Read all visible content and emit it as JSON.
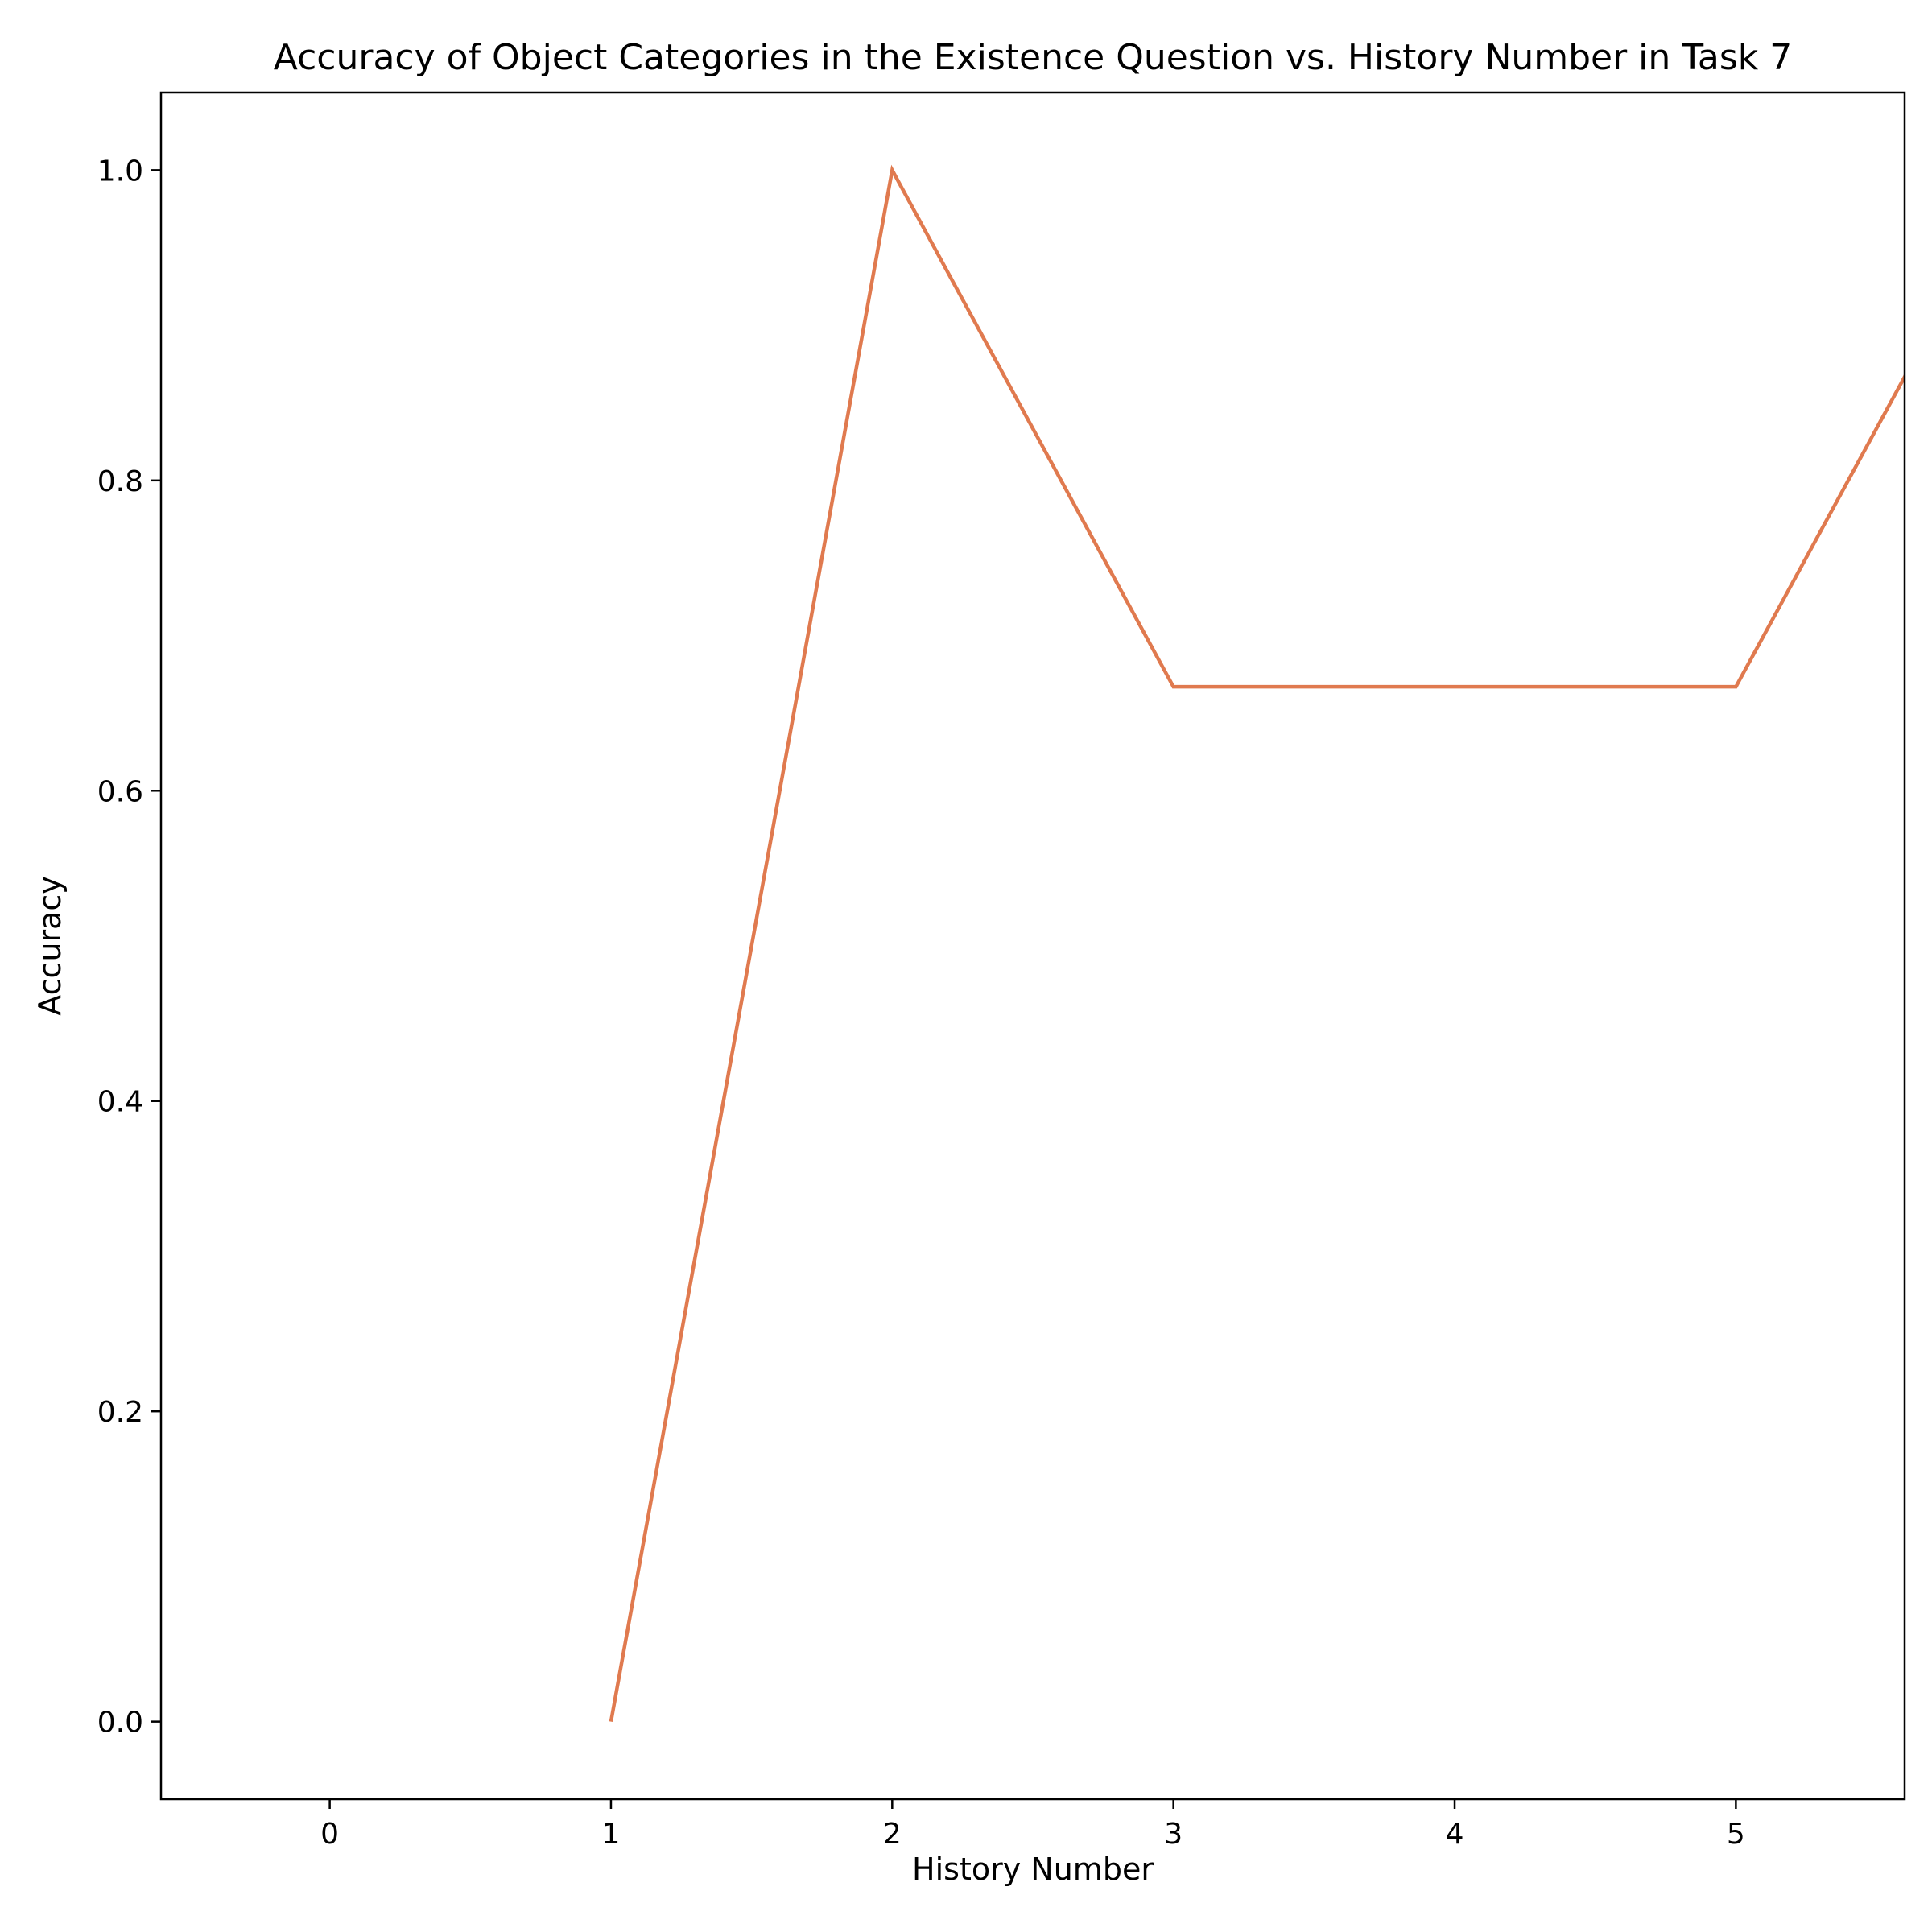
{
  "chart_data": {
    "type": "line",
    "title": "Accuracy of Object Categories in the Existence Question vs. History Number in Task 7",
    "xlabel": "History Number",
    "ylabel": "Accuracy",
    "xlim": [
      -0.6,
      5.6
    ],
    "ylim": [
      -0.05,
      1.05
    ],
    "xticks": [
      0,
      1,
      2,
      3,
      4,
      5
    ],
    "xtick_labels": [
      "0",
      "1",
      "2",
      "3",
      "4",
      "5"
    ],
    "yticks": [
      0.0,
      0.2,
      0.4,
      0.6,
      0.8,
      1.0
    ],
    "ytick_labels": [
      "0.0",
      "0.2",
      "0.4",
      "0.6",
      "0.8",
      "1.0"
    ],
    "grid": false,
    "series": [
      {
        "color": "#e07a4f",
        "x": [
          1,
          2,
          3,
          4,
          5,
          6
        ],
        "y": [
          0.0,
          1.0,
          0.667,
          0.667,
          0.667,
          1.0
        ]
      }
    ]
  }
}
